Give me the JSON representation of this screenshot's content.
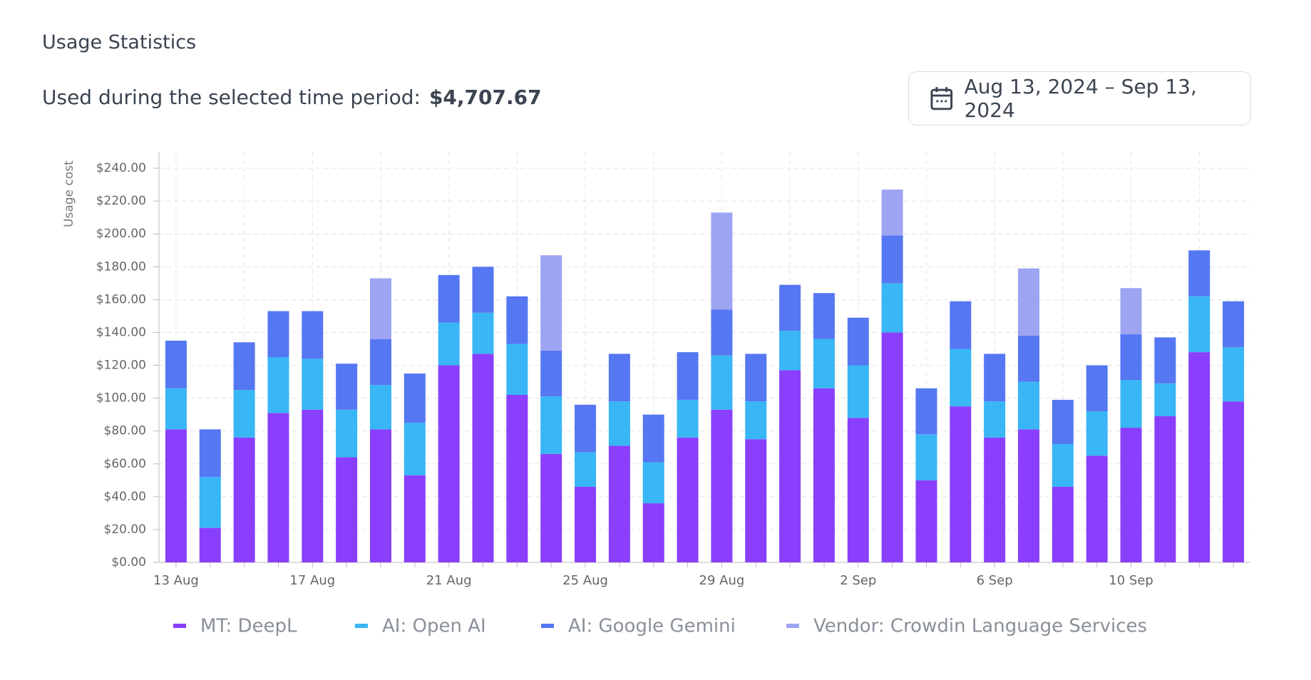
{
  "header": {
    "title": "Usage Statistics",
    "summary_label": "Used during the selected time period:",
    "summary_value": "$4,707.67",
    "date_range": "Aug 13, 2024 – Sep 13, 2024"
  },
  "chart_data": {
    "type": "stacked_bar",
    "y_label": "Usage cost",
    "categories": [
      "13 Aug",
      null,
      null,
      null,
      "17 Aug",
      null,
      null,
      null,
      "21 Aug",
      null,
      null,
      null,
      "25 Aug",
      null,
      null,
      null,
      "29 Aug",
      null,
      null,
      null,
      "2 Sep",
      null,
      null,
      null,
      "6 Sep",
      null,
      null,
      null,
      "10 Sep",
      null,
      null,
      null
    ],
    "series": [
      {
        "name": "MT: DeepL",
        "color": "#8a3ffc",
        "values": [
          81,
          21,
          76,
          91,
          93,
          64,
          81,
          53,
          120,
          127,
          102,
          66,
          46,
          71,
          36,
          76,
          93,
          75,
          117,
          106,
          88,
          140,
          50,
          95,
          76,
          81,
          46,
          65,
          82,
          89,
          128,
          98
        ]
      },
      {
        "name": "AI: Open AI",
        "color": "#38b6f5",
        "values": [
          25,
          31,
          29,
          34,
          31,
          29,
          27,
          32,
          26,
          25,
          31,
          35,
          21,
          27,
          25,
          23,
          33,
          23,
          24,
          30,
          32,
          30,
          28,
          35,
          22,
          29,
          26,
          27,
          29,
          20,
          34,
          33
        ]
      },
      {
        "name": "AI: Google Gemini",
        "color": "#5577f2",
        "values": [
          29,
          29,
          29,
          28,
          29,
          28,
          28,
          30,
          29,
          28,
          29,
          28,
          29,
          29,
          29,
          29,
          28,
          29,
          28,
          28,
          29,
          29,
          28,
          29,
          29,
          28,
          27,
          28,
          28,
          28,
          28,
          28
        ]
      },
      {
        "name": "Vendor: Crowdin Language Services",
        "color": "#9da4f2",
        "values": [
          0,
          0,
          0,
          0,
          0,
          0,
          37,
          0,
          0,
          0,
          0,
          58,
          0,
          0,
          0,
          0,
          59,
          0,
          0,
          0,
          0,
          28,
          0,
          0,
          0,
          41,
          0,
          0,
          28,
          0,
          0,
          0
        ]
      }
    ],
    "ylim": [
      0,
      250
    ],
    "yticks": [
      {
        "value": 0,
        "label": "$0.00"
      },
      {
        "value": 20,
        "label": "$20.00"
      },
      {
        "value": 40,
        "label": "$40.00"
      },
      {
        "value": 60,
        "label": "$60.00"
      },
      {
        "value": 80,
        "label": "$80.00"
      },
      {
        "value": 100,
        "label": "$100.00"
      },
      {
        "value": 120,
        "label": "$120.00"
      },
      {
        "value": 140,
        "label": "$140.00"
      },
      {
        "value": 160,
        "label": "$160.00"
      },
      {
        "value": 180,
        "label": "$180.00"
      },
      {
        "value": 200,
        "label": "$200.00"
      },
      {
        "value": 220,
        "label": "$220.00"
      },
      {
        "value": 240,
        "label": "$240.00"
      }
    ],
    "grid": true
  }
}
